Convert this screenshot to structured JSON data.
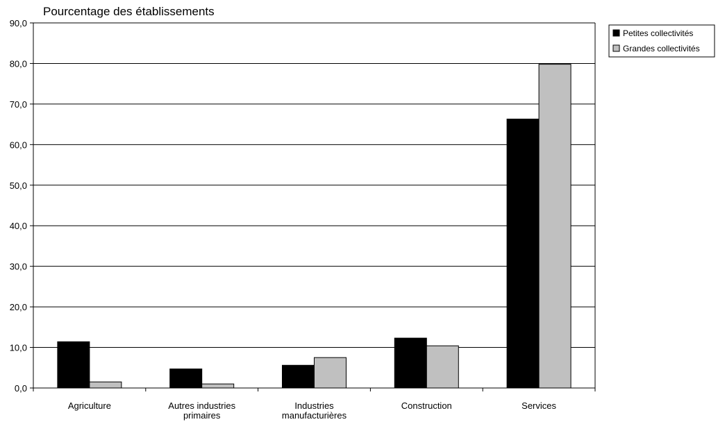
{
  "chart_data": {
    "type": "bar",
    "title": "",
    "ylabel": "Pourcentage des établissements",
    "xlabel": "",
    "ylim": [
      0,
      90
    ],
    "ytick_step": 10,
    "ytick_labels": [
      "0,0",
      "10,0",
      "20,0",
      "30,0",
      "40,0",
      "50,0",
      "60,0",
      "70,0",
      "80,0",
      "90,0"
    ],
    "grid": true,
    "legend_position": "top-right",
    "categories": [
      [
        "Agriculture"
      ],
      [
        "Autres industries",
        "primaires"
      ],
      [
        "Industries",
        "manufacturières"
      ],
      [
        "Construction"
      ],
      [
        "Services"
      ]
    ],
    "series": [
      {
        "name": "Petites collectivités",
        "color": "#000000",
        "values": [
          11.4,
          4.7,
          5.6,
          12.3,
          66.3
        ]
      },
      {
        "name": "Grandes collectivités",
        "color": "#c0c0c0",
        "values": [
          1.5,
          1.0,
          7.5,
          10.4,
          79.8
        ]
      }
    ]
  }
}
